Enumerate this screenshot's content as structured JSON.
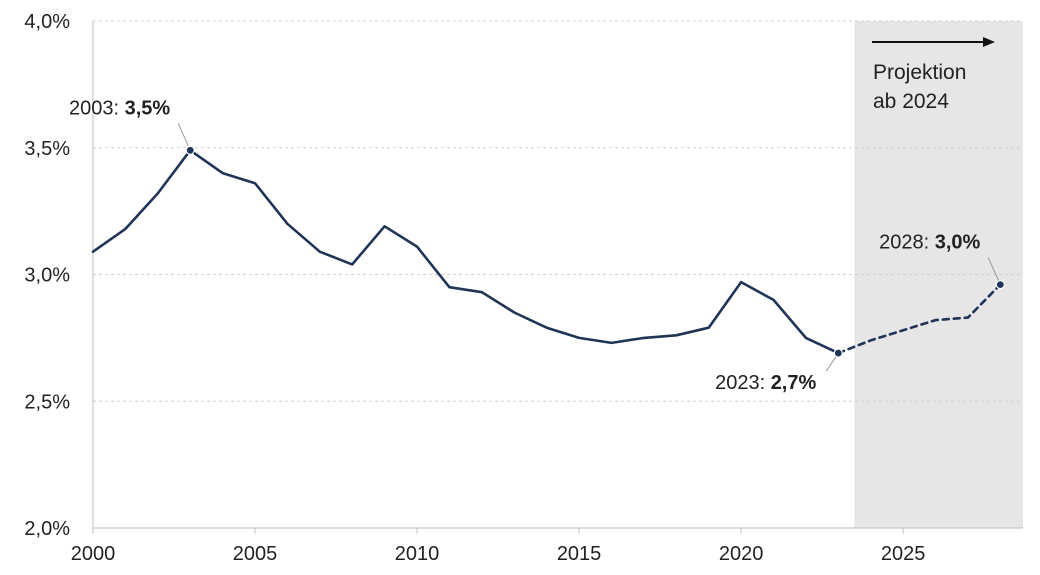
{
  "chart_data": {
    "type": "line",
    "title": "",
    "xlabel": "",
    "ylabel": "",
    "xlim": [
      2000,
      2028.7
    ],
    "ylim": [
      2.0,
      4.0
    ],
    "x_ticks": [
      2000,
      2005,
      2010,
      2015,
      2020,
      2025
    ],
    "x_tick_labels": [
      "2000",
      "2005",
      "2010",
      "2015",
      "2020",
      "2025"
    ],
    "y_ticks": [
      2.0,
      2.5,
      3.0,
      3.5,
      4.0
    ],
    "y_tick_labels": [
      "2,0%",
      "2,5%",
      "3,0%",
      "3,5%",
      "4,0%"
    ],
    "grid": "horizontal dashed",
    "series": [
      {
        "style": "solid",
        "color": "#1f3457",
        "points": [
          [
            2000,
            3.09
          ],
          [
            2001,
            3.18
          ],
          [
            2002,
            3.32
          ],
          [
            2003,
            3.49
          ],
          [
            2004,
            3.4
          ],
          [
            2005,
            3.36
          ],
          [
            2006,
            3.2
          ],
          [
            2007,
            3.09
          ],
          [
            2008,
            3.04
          ],
          [
            2009,
            3.19
          ],
          [
            2010,
            3.11
          ],
          [
            2011,
            2.95
          ],
          [
            2012,
            2.93
          ],
          [
            2013,
            2.85
          ],
          [
            2014,
            2.79
          ],
          [
            2015,
            2.75
          ],
          [
            2016,
            2.73
          ],
          [
            2017,
            2.75
          ],
          [
            2018,
            2.76
          ],
          [
            2019,
            2.79
          ],
          [
            2020,
            2.97
          ],
          [
            2021,
            2.9
          ],
          [
            2022,
            2.75
          ],
          [
            2023,
            2.69
          ]
        ]
      },
      {
        "style": "dashed",
        "color": "#1f3457",
        "points": [
          [
            2023,
            2.69
          ],
          [
            2024,
            2.74
          ],
          [
            2025,
            2.78
          ],
          [
            2026,
            2.82
          ],
          [
            2027,
            2.83
          ],
          [
            2028,
            2.96
          ]
        ]
      }
    ],
    "projection_region": {
      "from": 2023.5,
      "to": 2028.7,
      "color": "#e6e6e6"
    },
    "projection_label": [
      "Projektion",
      "ab 2024"
    ],
    "annotations": [
      {
        "x": 2003,
        "y": 3.49,
        "prefix": "2003: ",
        "value": "3,5%",
        "anchor": "above-left"
      },
      {
        "x": 2023,
        "y": 2.69,
        "prefix": "2023: ",
        "value": "2,7%",
        "anchor": "below-left"
      },
      {
        "x": 2028,
        "y": 2.96,
        "prefix": "2028: ",
        "value": "3,0%",
        "anchor": "above-left"
      }
    ]
  }
}
